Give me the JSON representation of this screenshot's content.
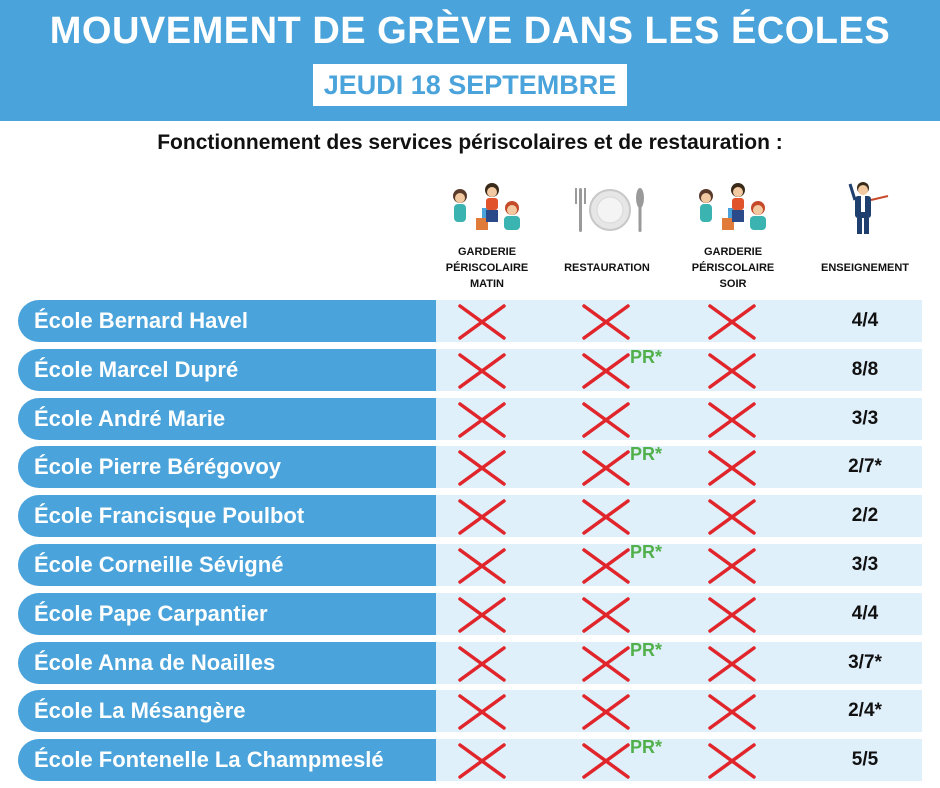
{
  "header": {
    "title": "MOUVEMENT DE GRÈVE DANS LES ÉCOLES",
    "date": "JEUDI 18 SEPTEMBRE"
  },
  "subtitle": "Fonctionnement des services périscolaires et de restauration :",
  "colors": {
    "primary": "#4aa3da",
    "row_light": "#dff0fb",
    "cross": "#e0252b",
    "pr": "#52b04a"
  },
  "columns": [
    {
      "label": "GARDERIE\nPÉRISCOLAIRE\nMATIN",
      "icon": "children-playing-icon"
    },
    {
      "label": "RESTAURATION",
      "icon": "plate-cutlery-icon"
    },
    {
      "label": "GARDERIE\nPÉRISCOLAIRE\nSOIR",
      "icon": "children-playing-icon"
    },
    {
      "label": "ENSEIGNEMENT",
      "icon": "teacher-icon"
    }
  ],
  "schools": [
    {
      "name": "École Bernard Havel",
      "restauration_note": "",
      "enseignement": "4/4"
    },
    {
      "name": "École Marcel Dupré",
      "restauration_note": "PR*",
      "enseignement": "8/8"
    },
    {
      "name": "École André Marie",
      "restauration_note": "",
      "enseignement": "3/3"
    },
    {
      "name": "École Pierre Bérégovoy",
      "restauration_note": "PR*",
      "enseignement": "2/7*"
    },
    {
      "name": "École Francisque Poulbot",
      "restauration_note": "",
      "enseignement": "2/2"
    },
    {
      "name": "École Corneille Sévigné",
      "restauration_note": "PR*",
      "enseignement": "3/3"
    },
    {
      "name": "École Pape Carpantier",
      "restauration_note": "",
      "enseignement": "4/4"
    },
    {
      "name": "École Anna de Noailles",
      "restauration_note": "PR*",
      "enseignement": "3/7*"
    },
    {
      "name": "École La Mésangère",
      "restauration_note": "",
      "enseignement": "2/4*"
    },
    {
      "name": "École Fontenelle La Champmeslé",
      "restauration_note": "PR*",
      "enseignement": "5/5"
    }
  ]
}
